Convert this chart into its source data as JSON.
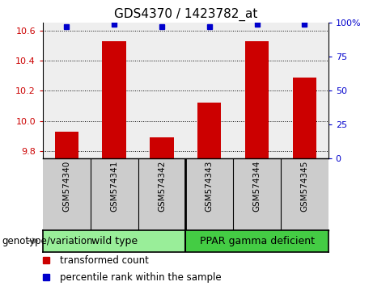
{
  "title": "GDS4370 / 1423782_at",
  "samples": [
    "GSM574340",
    "GSM574341",
    "GSM574342",
    "GSM574343",
    "GSM574344",
    "GSM574345"
  ],
  "transformed_counts": [
    9.93,
    10.53,
    9.89,
    10.12,
    10.53,
    10.29
  ],
  "percentile_ranks": [
    97,
    99,
    97,
    97,
    99,
    99
  ],
  "ylim_left": [
    9.75,
    10.65
  ],
  "ylim_right": [
    0,
    100
  ],
  "yticks_left": [
    9.8,
    10.0,
    10.2,
    10.4,
    10.6
  ],
  "yticks_right": [
    0,
    25,
    50,
    75,
    100
  ],
  "ytick_labels_right": [
    "0",
    "25",
    "50",
    "75",
    "100%"
  ],
  "bar_color": "#cc0000",
  "dot_color": "#0000cc",
  "group1_label": "wild type",
  "group1_color": "#99ee99",
  "group2_label": "PPAR gamma deficient",
  "group2_color": "#44cc44",
  "xlabel_text": "genotype/variation",
  "legend_items": [
    {
      "color": "#cc0000",
      "label": "transformed count"
    },
    {
      "color": "#0000cc",
      "label": "percentile rank within the sample"
    }
  ],
  "grid_linestyle": ":",
  "grid_linewidth": 0.7,
  "plot_bg": "#eeeeee",
  "xtick_bg": "#cccccc",
  "bar_width": 0.5,
  "fig_w": 4.61,
  "fig_h": 3.54,
  "dpi": 100
}
